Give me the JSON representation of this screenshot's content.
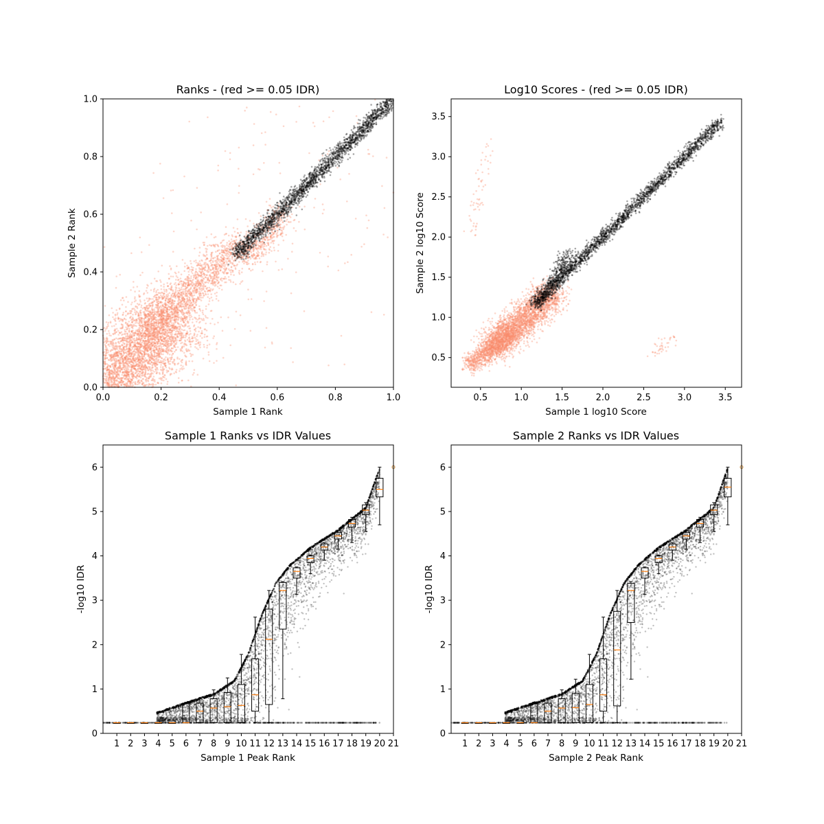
{
  "chart_data": [
    {
      "type": "scatter",
      "title": "Ranks - (red >= 0.05 IDR)",
      "xlabel": "Sample 1 Rank",
      "ylabel": "Sample 2 Rank",
      "xlim": [
        0,
        1
      ],
      "ylim": [
        0,
        1
      ],
      "xticks": [
        "0.0",
        "0.2",
        "0.4",
        "0.6",
        "0.8",
        "1.0"
      ],
      "yticks": [
        "0.0",
        "0.2",
        "0.4",
        "0.6",
        "0.8",
        "1.0"
      ],
      "series": [
        {
          "color": "#fa8c6e",
          "clusters": [
            {
              "x": [
                0.0,
                0.25
              ],
              "y": [
                0.0,
                0.25
              ],
              "sd": 0.13,
              "n": 3800
            },
            {
              "x": [
                0.15,
                0.48
              ],
              "y": [
                0.2,
                0.5
              ],
              "sd": 0.07,
              "n": 1500
            },
            {
              "x": [
                0.5,
                0.62
              ],
              "y": [
                0.45,
                0.6
              ],
              "sd": 0.05,
              "n": 400
            },
            {
              "x": [
                0.0,
                1.0
              ],
              "y": [
                0.0,
                1.0
              ],
              "sd": 0.45,
              "n": 300
            }
          ]
        },
        {
          "color": "#000000",
          "clusters": [
            {
              "x": [
                0.46,
                1.0
              ],
              "y": [
                0.46,
                1.0
              ],
              "sd": 0.025,
              "n": 2200
            }
          ]
        }
      ]
    },
    {
      "type": "scatter",
      "title": "Log10 Scores - (red >= 0.05 IDR)",
      "xlabel": "Sample 1 log10 Score",
      "ylabel": "Sample 2 log10 Score",
      "xlim": [
        0.14,
        3.7
      ],
      "ylim": [
        0.13,
        3.72
      ],
      "xticks": [
        "0.5",
        "1.0",
        "1.5",
        "2.0",
        "2.5",
        "3.0",
        "3.5"
      ],
      "yticks": [
        "0.5",
        "1.0",
        "1.5",
        "2.0",
        "2.5",
        "3.0",
        "3.5"
      ],
      "series": [
        {
          "color": "#fa8c6e",
          "clusters": [
            {
              "x": [
                0.6,
                1.4
              ],
              "y": [
                0.6,
                1.3
              ],
              "sd": 0.2,
              "n": 2600
            },
            {
              "x": [
                0.35,
                0.9
              ],
              "y": [
                0.4,
                0.8
              ],
              "sd": 0.12,
              "n": 900
            },
            {
              "x": [
                0.4,
                0.6
              ],
              "y": [
                2.0,
                3.2
              ],
              "sd": 0.08,
              "n": 60
            },
            {
              "x": [
                2.6,
                2.9
              ],
              "y": [
                0.55,
                0.75
              ],
              "sd": 0.08,
              "n": 40
            }
          ]
        },
        {
          "color": "#000000",
          "clusters": [
            {
              "x": [
                1.15,
                3.45
              ],
              "y": [
                1.15,
                3.45
              ],
              "sd": 0.07,
              "n": 2200
            },
            {
              "x": [
                1.2,
                1.6
              ],
              "y": [
                1.15,
                1.8
              ],
              "sd": 0.1,
              "n": 400
            }
          ]
        }
      ]
    },
    {
      "type": "scatter",
      "title": "Sample 1 Ranks vs IDR Values",
      "xlabel": "Sample 1 Peak Rank",
      "ylabel": "-log10 IDR",
      "xlim": [
        0,
        21
      ],
      "ylim": [
        0,
        6.5
      ],
      "xticks": [
        "1",
        "2",
        "3",
        "4",
        "5",
        "6",
        "7",
        "8",
        "9",
        "10",
        "11",
        "12",
        "13",
        "14",
        "15",
        "16",
        "17",
        "18",
        "19",
        "20",
        "21"
      ],
      "yticks": [
        "0",
        "1",
        "2",
        "3",
        "4",
        "5",
        "6"
      ],
      "curve": {
        "x": [
          3.9,
          6,
          8,
          9.5,
          10.5,
          11.5,
          12.5,
          13.5,
          15,
          17,
          19,
          20
        ],
        "y": [
          0.48,
          0.7,
          0.9,
          1.2,
          1.8,
          2.7,
          3.4,
          3.8,
          4.2,
          4.6,
          5.1,
          6.0
        ]
      },
      "boxes": {
        "positions": [
          1,
          2,
          3,
          4,
          5,
          6,
          7,
          8,
          9,
          10,
          11,
          12,
          13,
          14,
          15,
          16,
          17,
          18,
          19,
          20
        ],
        "medians": [
          0.24,
          0.24,
          0.24,
          0.24,
          0.24,
          0.24,
          0.5,
          0.57,
          0.6,
          0.63,
          0.87,
          2.12,
          3.22,
          3.65,
          3.94,
          4.2,
          4.45,
          4.73,
          5.03,
          5.5
        ],
        "q1": [
          0.24,
          0.24,
          0.24,
          0.24,
          0.24,
          0.24,
          0.24,
          0.24,
          0.24,
          0.24,
          0.5,
          0.65,
          2.35,
          3.5,
          3.85,
          4.13,
          4.38,
          4.65,
          4.93,
          5.33
        ],
        "q3": [
          0.24,
          0.24,
          0.24,
          0.24,
          0.24,
          0.68,
          0.68,
          0.78,
          0.92,
          1.1,
          1.68,
          2.8,
          3.4,
          3.73,
          4.0,
          4.27,
          4.53,
          4.82,
          5.15,
          5.75
        ],
        "whislo": [
          0.24,
          0.24,
          0.24,
          0.24,
          0.24,
          0.24,
          0.24,
          0.24,
          0.24,
          0.24,
          0.24,
          0.24,
          0.78,
          3.13,
          3.6,
          3.9,
          4.15,
          4.3,
          4.55,
          4.7
        ],
        "whishi": [
          0.24,
          0.24,
          0.24,
          0.24,
          0.24,
          0.7,
          0.78,
          0.98,
          1.25,
          1.78,
          2.62,
          3.22,
          3.42,
          3.75,
          4.02,
          4.3,
          4.57,
          4.87,
          5.2,
          6.0
        ]
      }
    },
    {
      "type": "scatter",
      "title": "Sample 2 Ranks vs IDR Values",
      "xlabel": "Sample 2 Peak Rank",
      "ylabel": "-log10 IDR",
      "xlim": [
        0,
        21
      ],
      "ylim": [
        0,
        6.5
      ],
      "xticks": [
        "1",
        "2",
        "3",
        "4",
        "5",
        "6",
        "7",
        "8",
        "9",
        "10",
        "11",
        "12",
        "13",
        "14",
        "15",
        "16",
        "17",
        "18",
        "19",
        "20",
        "21"
      ],
      "yticks": [
        "0",
        "1",
        "2",
        "3",
        "4",
        "5",
        "6"
      ],
      "curve": {
        "x": [
          3.9,
          6,
          8,
          9.5,
          10.5,
          11.5,
          12.5,
          13.5,
          15,
          17,
          19,
          20
        ],
        "y": [
          0.48,
          0.7,
          0.9,
          1.2,
          1.8,
          2.7,
          3.4,
          3.8,
          4.2,
          4.6,
          5.1,
          6.0
        ]
      },
      "boxes": {
        "positions": [
          1,
          2,
          3,
          4,
          5,
          6,
          7,
          8,
          9,
          10,
          11,
          12,
          13,
          14,
          15,
          16,
          17,
          18,
          19,
          20
        ],
        "medians": [
          0.24,
          0.24,
          0.24,
          0.24,
          0.24,
          0.24,
          0.5,
          0.57,
          0.58,
          0.65,
          0.87,
          1.88,
          3.22,
          3.65,
          3.94,
          4.2,
          4.45,
          4.73,
          5.03,
          5.55
        ],
        "q1": [
          0.24,
          0.24,
          0.24,
          0.24,
          0.24,
          0.24,
          0.24,
          0.24,
          0.24,
          0.24,
          0.5,
          0.62,
          2.5,
          3.5,
          3.85,
          4.13,
          4.38,
          4.65,
          4.93,
          5.33
        ],
        "q3": [
          0.24,
          0.24,
          0.24,
          0.24,
          0.24,
          0.68,
          0.68,
          0.78,
          0.9,
          1.1,
          1.68,
          2.75,
          3.38,
          3.73,
          4.0,
          4.27,
          4.53,
          4.82,
          5.15,
          5.75
        ],
        "whislo": [
          0.24,
          0.24,
          0.24,
          0.24,
          0.24,
          0.24,
          0.24,
          0.24,
          0.24,
          0.24,
          0.24,
          0.24,
          1.22,
          3.13,
          3.6,
          3.9,
          4.15,
          4.3,
          4.55,
          4.7
        ],
        "whishi": [
          0.24,
          0.24,
          0.24,
          0.24,
          0.24,
          0.7,
          0.78,
          0.98,
          1.22,
          1.78,
          2.62,
          3.22,
          3.42,
          3.75,
          4.02,
          4.3,
          4.57,
          4.87,
          5.2,
          6.0
        ]
      }
    }
  ]
}
